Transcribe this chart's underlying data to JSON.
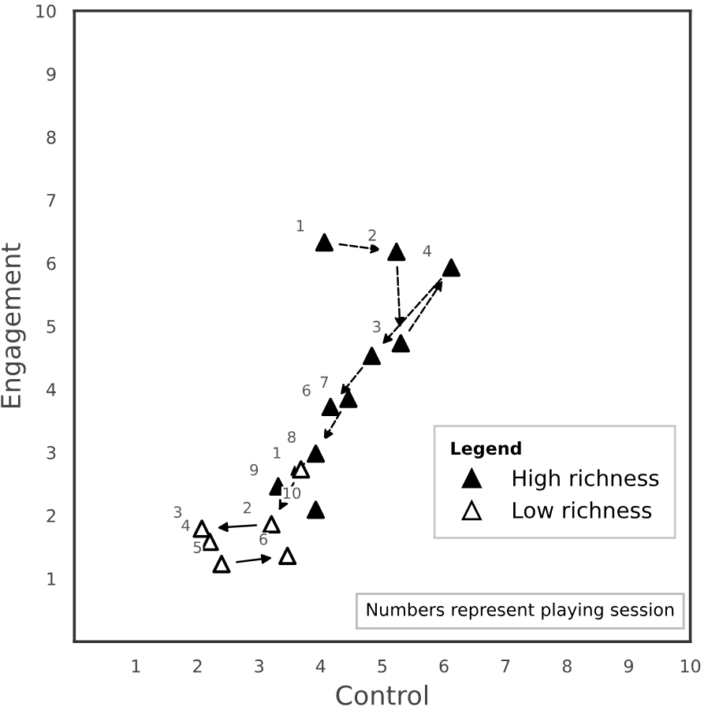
{
  "chart_data": {
    "type": "scatter",
    "xlabel": "Control",
    "ylabel": "Engagement",
    "xlim": [
      0,
      10
    ],
    "ylim": [
      0,
      10
    ],
    "xticks": [
      1,
      2,
      3,
      4,
      5,
      6,
      7,
      8,
      9,
      10
    ],
    "yticks": [
      1,
      2,
      3,
      4,
      5,
      6,
      7,
      8,
      9,
      10
    ],
    "grid": false,
    "legend": "bottom right",
    "legend_title": "Legend",
    "marker": "triangle",
    "annotations": [
      "Numbers represent playing session",
      {
        "text": "1",
        "x": 4.06,
        "y": 6.33
      },
      {
        "text": "2",
        "x": 5.23,
        "y": 6.18
      },
      {
        "text": "3",
        "x": 5.3,
        "y": 4.73
      },
      {
        "text": "4",
        "x": 6.12,
        "y": 5.93
      },
      {
        "text": "6",
        "x": 4.16,
        "y": 3.72
      },
      {
        "text": "7",
        "x": 4.45,
        "y": 3.85
      },
      {
        "text": "8",
        "x": 3.92,
        "y": 2.98
      },
      {
        "text": "9",
        "x": 3.31,
        "y": 2.46
      },
      {
        "text": "10",
        "x": 3.92,
        "y": 2.09
      },
      {
        "text": "1",
        "x": 3.68,
        "y": 2.73
      },
      {
        "text": "2",
        "x": 3.2,
        "y": 1.86
      },
      {
        "text": "3",
        "x": 2.07,
        "y": 1.79
      },
      {
        "text": "4",
        "x": 2.2,
        "y": 1.58
      },
      {
        "text": "5",
        "x": 2.39,
        "y": 1.23
      },
      {
        "text": "6",
        "x": 3.46,
        "y": 1.36
      }
    ],
    "series": [
      {
        "name": "High richness",
        "color": "#000000",
        "line_style": "dashed",
        "x": [
          4.06,
          5.23,
          5.3,
          6.12,
          4.83,
          4.16,
          4.45,
          3.92,
          3.31,
          3.92
        ],
        "values": [
          6.33,
          6.18,
          4.73,
          5.93,
          4.53,
          3.72,
          3.85,
          2.98,
          2.46,
          2.09
        ]
      },
      {
        "name": "Low richness",
        "color": "#ffffff",
        "line_style": "solid",
        "x": [
          3.68,
          3.2,
          2.07,
          2.2,
          2.39,
          3.46
        ],
        "values": [
          2.73,
          1.86,
          1.79,
          1.58,
          1.23,
          1.36
        ]
      }
    ]
  }
}
